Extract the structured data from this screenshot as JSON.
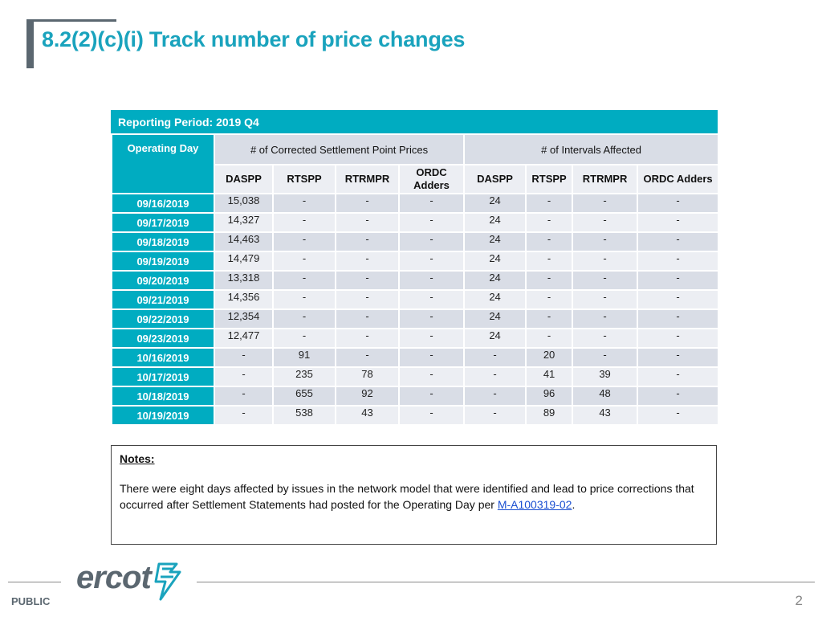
{
  "title": "8.2(2)(c)(i) Track number of price changes",
  "reporting_period": "Reporting Period: 2019 Q4",
  "table": {
    "operating_day_header": "Operating Day",
    "group1_header": "# of Corrected Settlement Point Prices",
    "group2_header": "# of Intervals Affected",
    "sub_headers": [
      "DASPP",
      "RTSPP",
      "RTRMPR",
      "ORDC Adders",
      "DASPP",
      "RTSPP",
      "RTRMPR",
      "ORDC Adders"
    ],
    "rows": [
      {
        "date": "09/16/2019",
        "cells": [
          "15,038",
          "-",
          "-",
          "-",
          "24",
          "-",
          "-",
          "-"
        ]
      },
      {
        "date": "09/17/2019",
        "cells": [
          "14,327",
          "-",
          "-",
          "-",
          "24",
          "-",
          "-",
          "-"
        ]
      },
      {
        "date": "09/18/2019",
        "cells": [
          "14,463",
          "-",
          "-",
          "-",
          "24",
          "-",
          "-",
          "-"
        ]
      },
      {
        "date": "09/19/2019",
        "cells": [
          "14,479",
          "-",
          "-",
          "-",
          "24",
          "-",
          "-",
          "-"
        ]
      },
      {
        "date": "09/20/2019",
        "cells": [
          "13,318",
          "-",
          "-",
          "-",
          "24",
          "-",
          "-",
          "-"
        ]
      },
      {
        "date": "09/21/2019",
        "cells": [
          "14,356",
          "-",
          "-",
          "-",
          "24",
          "-",
          "-",
          "-"
        ]
      },
      {
        "date": "09/22/2019",
        "cells": [
          "12,354",
          "-",
          "-",
          "-",
          "24",
          "-",
          "-",
          "-"
        ]
      },
      {
        "date": "09/23/2019",
        "cells": [
          "12,477",
          "-",
          "-",
          "-",
          "24",
          "-",
          "-",
          "-"
        ]
      },
      {
        "date": "10/16/2019",
        "cells": [
          "-",
          "91",
          "-",
          "-",
          "-",
          "20",
          "-",
          "-"
        ]
      },
      {
        "date": "10/17/2019",
        "cells": [
          "-",
          "235",
          "78",
          "-",
          "-",
          "41",
          "39",
          "-"
        ]
      },
      {
        "date": "10/18/2019",
        "cells": [
          "-",
          "655",
          "92",
          "-",
          "-",
          "96",
          "48",
          "-"
        ]
      },
      {
        "date": "10/19/2019",
        "cells": [
          "-",
          "538",
          "43",
          "-",
          "-",
          "89",
          "43",
          "-"
        ]
      }
    ]
  },
  "notes": {
    "title": "Notes:",
    "text": "There were eight days affected by issues in the network model that were identified and lead to price corrections that occurred after Settlement Statements had posted for the Operating Day per ",
    "link_text": "M-A100319-02",
    "trailing": "."
  },
  "footer": {
    "logo_text": "ercot",
    "logo_icon": "ercot-lightning-icon",
    "classification": "PUBLIC",
    "page_number": "2"
  },
  "colors": {
    "accent": "#00acc1",
    "title": "#1aa3bd",
    "header_row": "#d9dde6",
    "alt_row": "#eceef3",
    "gray": "#5b6770"
  }
}
